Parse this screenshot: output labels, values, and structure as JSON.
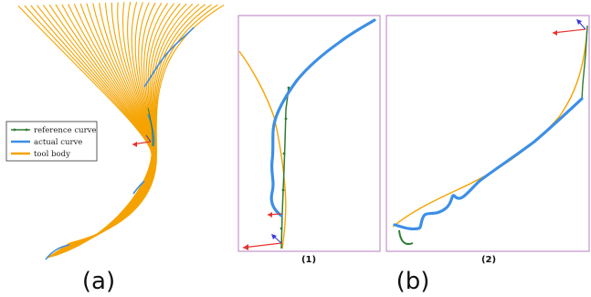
{
  "legend": {
    "items": [
      {
        "label": "reference curve",
        "color": "#2e7d32"
      },
      {
        "label": "actual curve",
        "color": "#3d8fe6"
      },
      {
        "label": "tool body",
        "color": "#f5a300"
      }
    ]
  },
  "labels": {
    "panel_a": "(a)",
    "panel_b": "(b)",
    "sub_1": "(1)",
    "sub_2": "(2)"
  },
  "colors": {
    "reference": "#2e7d32",
    "actual": "#3d8fe6",
    "tool": "#f5a300",
    "frame_arrow": "#e8322d",
    "frame_arrow_2": "#3b3bd6",
    "box": "#c89ccf"
  }
}
